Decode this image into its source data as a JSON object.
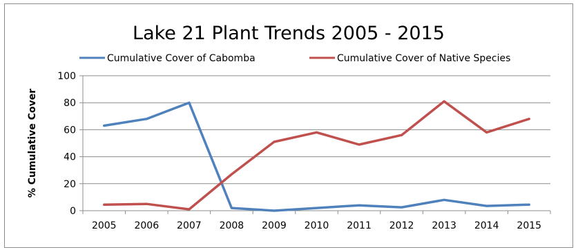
{
  "chart_data": {
    "type": "line",
    "title": "Lake 21 Plant Trends 2005 - 2015",
    "xlabel": "",
    "ylabel": "% Cumulative Cover",
    "categories": [
      "2005",
      "2006",
      "2007",
      "2008",
      "2009",
      "2010",
      "2011",
      "2012",
      "2013",
      "2014",
      "2015"
    ],
    "ylim": [
      0,
      100
    ],
    "yticks": [
      "0",
      "20",
      "40",
      "60",
      "80",
      "100"
    ],
    "grid": "horizontal",
    "legend_position": "top",
    "series": [
      {
        "name": "Cumulative Cover of Cabomba",
        "color": "#4f81bd",
        "values": [
          63,
          68,
          80,
          2,
          0,
          2,
          4,
          2.5,
          8,
          3.5,
          4.5
        ]
      },
      {
        "name": "Cumulative Cover of Native Species",
        "color": "#c0504d",
        "values": [
          4.5,
          5,
          1,
          27,
          51,
          58,
          49,
          56,
          81,
          58,
          68
        ]
      }
    ]
  }
}
